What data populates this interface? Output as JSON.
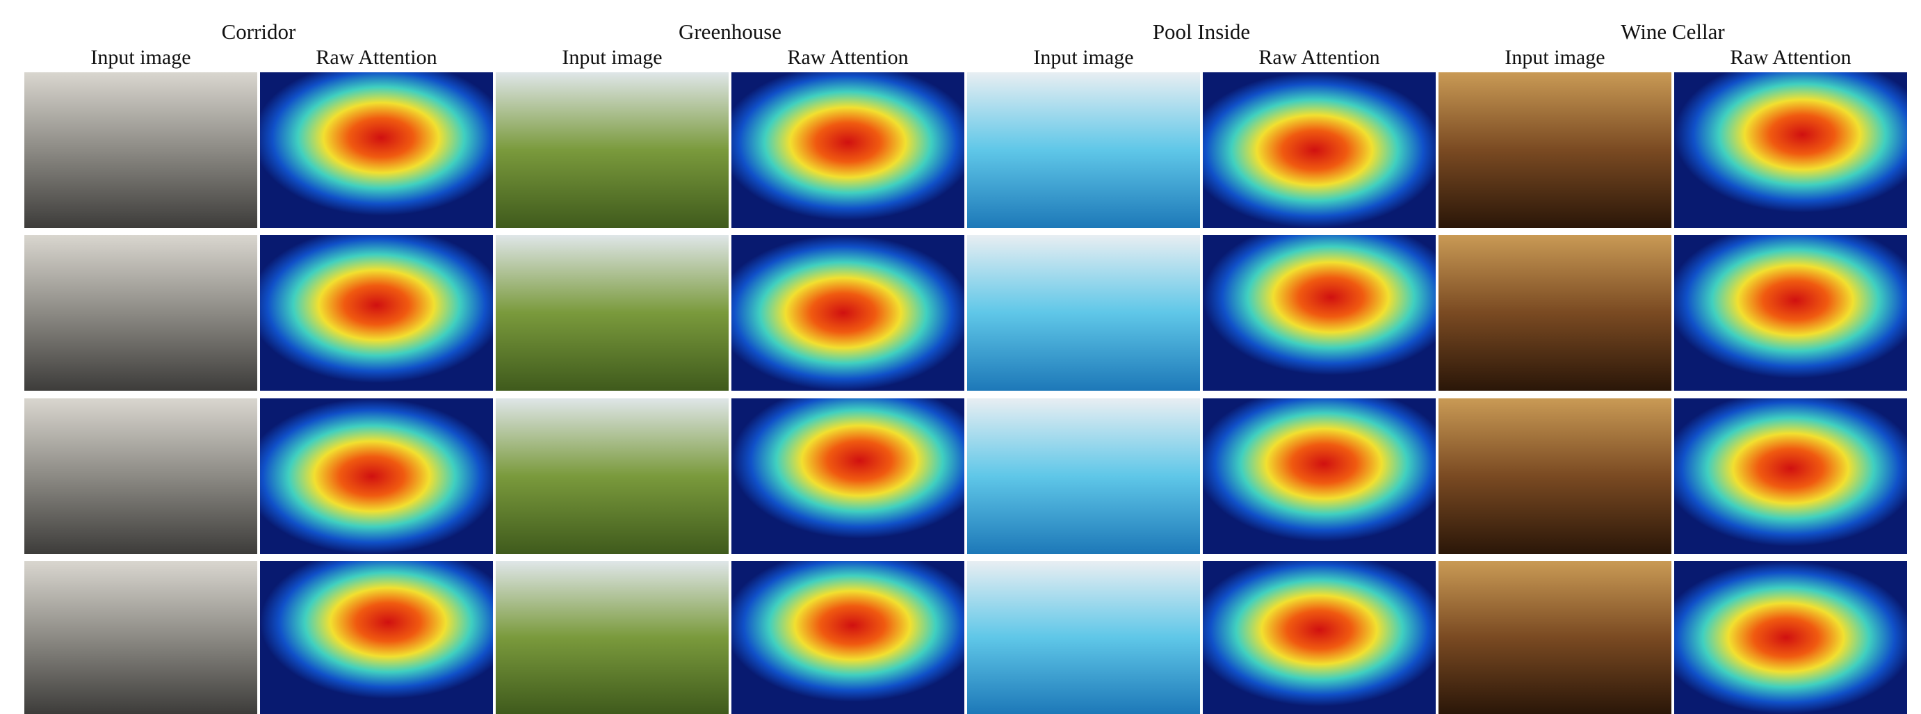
{
  "groups": [
    {
      "title": "Corridor",
      "columns": [
        "Input image",
        "Raw Attention"
      ]
    },
    {
      "title": "Greenhouse",
      "columns": [
        "Input image",
        "Raw Attention"
      ]
    },
    {
      "title": "Pool Inside",
      "columns": [
        "Input image",
        "Raw Attention"
      ]
    },
    {
      "title": "Wine Cellar",
      "columns": [
        "Input image",
        "Raw Attention"
      ]
    }
  ]
}
